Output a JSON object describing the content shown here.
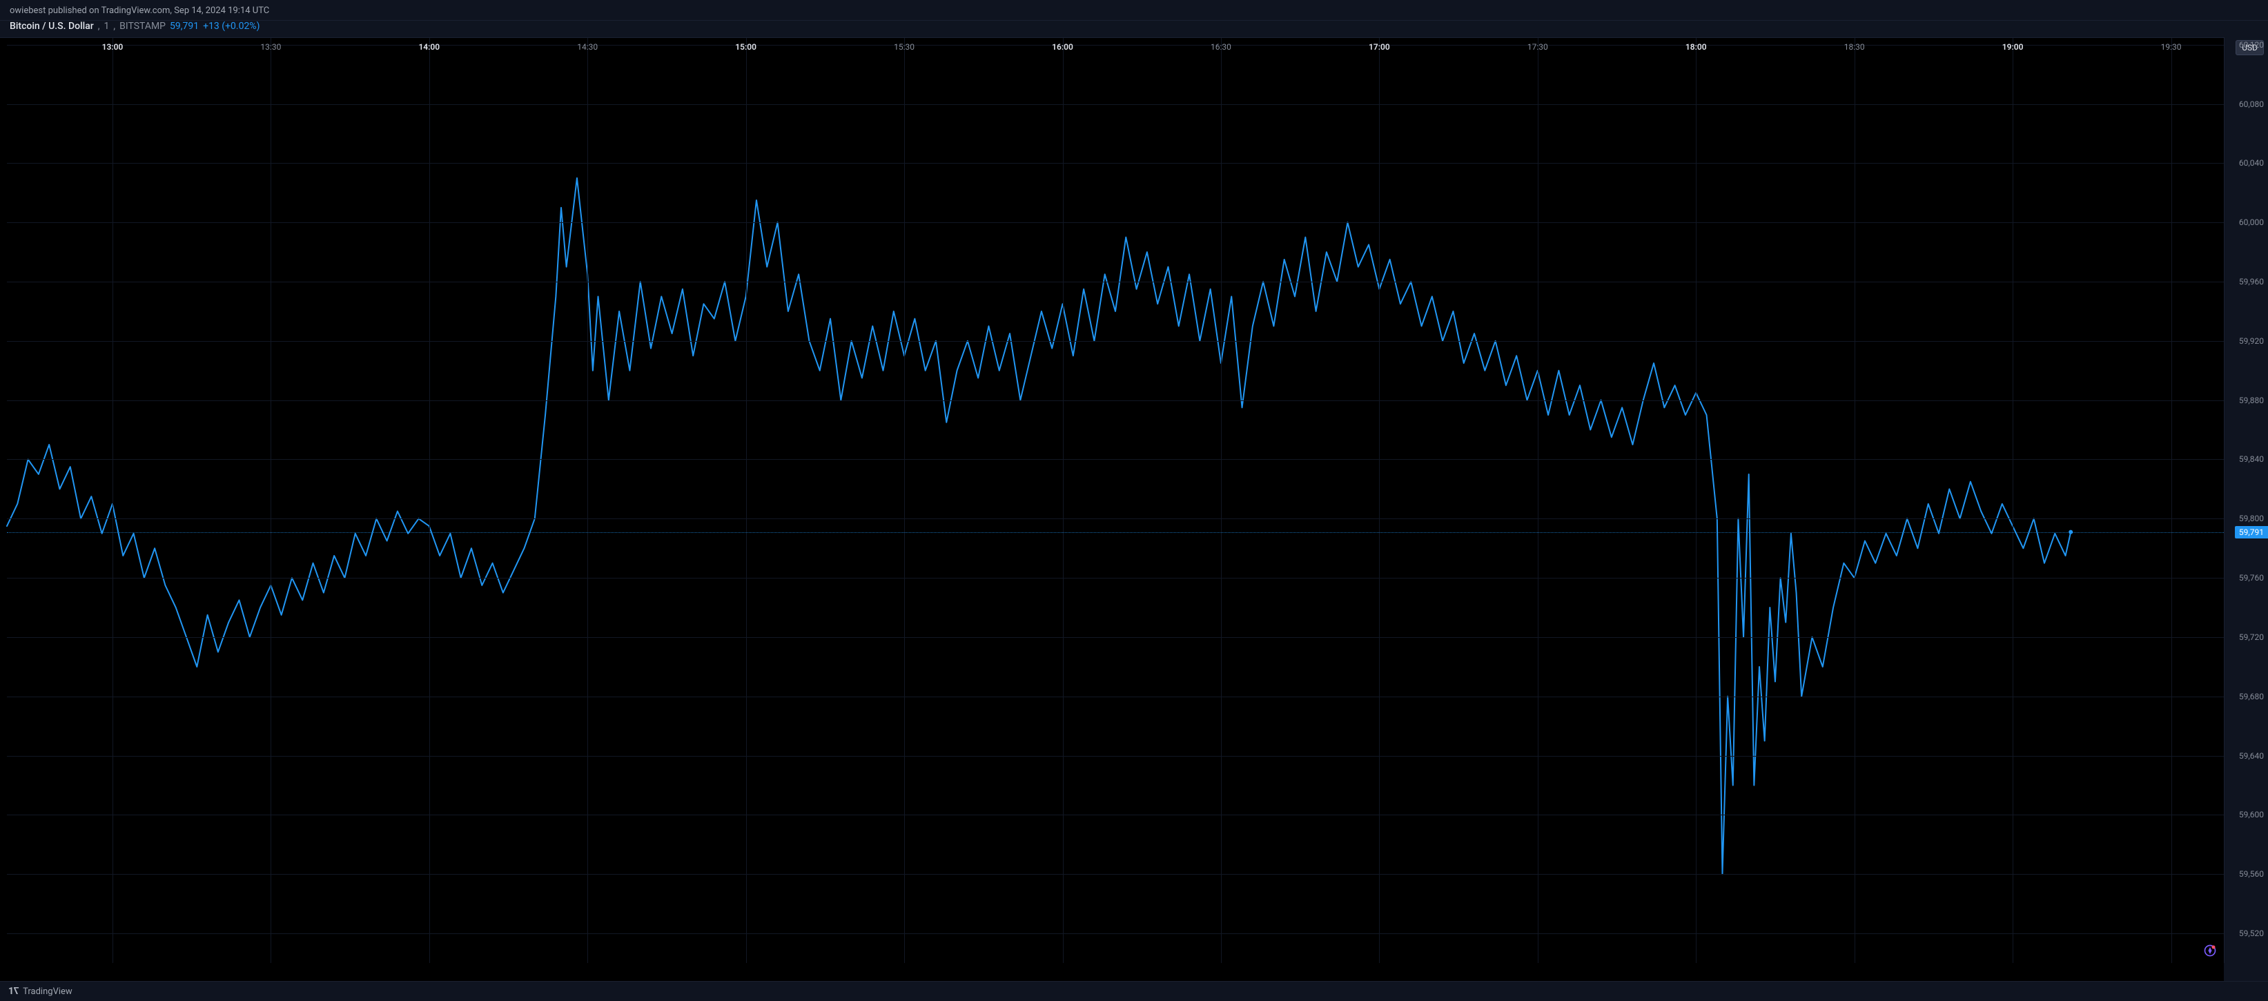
{
  "header": {
    "attribution": "owiebest published on TradingView.com, Sep 14, 2024 19:14 UTC"
  },
  "symbol_bar": {
    "symbol": "Bitcoin / U.S. Dollar",
    "interval": "1",
    "exchange": "BITSTAMP",
    "last_price": "59,791",
    "change": "+13 (+0.02%)"
  },
  "chart": {
    "type": "line",
    "line_color": "#2196f3",
    "line_width": 2,
    "background_color": "#000000",
    "grid_color": "#111724",
    "dotted_line_color": "#2196f3",
    "last_point_marker_color": "#2196f3",
    "ylim": [
      59500,
      60125
    ],
    "yticks": [
      {
        "v": 60120,
        "label": "60,120"
      },
      {
        "v": 60080,
        "label": "60,080"
      },
      {
        "v": 60040,
        "label": "60,040"
      },
      {
        "v": 60000,
        "label": "60,000"
      },
      {
        "v": 59960,
        "label": "59,960"
      },
      {
        "v": 59920,
        "label": "59,920"
      },
      {
        "v": 59880,
        "label": "59,880"
      },
      {
        "v": 59840,
        "label": "59,840"
      },
      {
        "v": 59800,
        "label": "59,800"
      },
      {
        "v": 59760,
        "label": "59,760"
      },
      {
        "v": 59720,
        "label": "59,720"
      },
      {
        "v": 59680,
        "label": "59,680"
      },
      {
        "v": 59640,
        "label": "59,640"
      },
      {
        "v": 59600,
        "label": "59,600"
      },
      {
        "v": 59560,
        "label": "59,560"
      },
      {
        "v": 59520,
        "label": "59,520"
      }
    ],
    "price_tag": {
      "v": 59791,
      "label": "59,791"
    },
    "xlim": [
      0,
      420
    ],
    "xticks": [
      {
        "x": 20,
        "label": "13:00",
        "bold": true
      },
      {
        "x": 50,
        "label": "13:30",
        "bold": false
      },
      {
        "x": 80,
        "label": "14:00",
        "bold": true
      },
      {
        "x": 110,
        "label": "14:30",
        "bold": false
      },
      {
        "x": 140,
        "label": "15:00",
        "bold": true
      },
      {
        "x": 170,
        "label": "15:30",
        "bold": false
      },
      {
        "x": 200,
        "label": "16:00",
        "bold": true
      },
      {
        "x": 230,
        "label": "16:30",
        "bold": false
      },
      {
        "x": 260,
        "label": "17:00",
        "bold": true
      },
      {
        "x": 290,
        "label": "17:30",
        "bold": false
      },
      {
        "x": 320,
        "label": "18:00",
        "bold": true
      },
      {
        "x": 350,
        "label": "18:30",
        "bold": false
      },
      {
        "x": 380,
        "label": "19:00",
        "bold": true
      },
      {
        "x": 410,
        "label": "19:30",
        "bold": false
      }
    ],
    "series": [
      [
        0,
        59795
      ],
      [
        2,
        59810
      ],
      [
        4,
        59840
      ],
      [
        6,
        59830
      ],
      [
        8,
        59850
      ],
      [
        10,
        59820
      ],
      [
        12,
        59835
      ],
      [
        14,
        59800
      ],
      [
        16,
        59815
      ],
      [
        18,
        59790
      ],
      [
        20,
        59810
      ],
      [
        22,
        59775
      ],
      [
        24,
        59790
      ],
      [
        26,
        59760
      ],
      [
        28,
        59780
      ],
      [
        30,
        59755
      ],
      [
        32,
        59740
      ],
      [
        34,
        59720
      ],
      [
        36,
        59700
      ],
      [
        38,
        59735
      ],
      [
        40,
        59710
      ],
      [
        42,
        59730
      ],
      [
        44,
        59745
      ],
      [
        46,
        59720
      ],
      [
        48,
        59740
      ],
      [
        50,
        59755
      ],
      [
        52,
        59735
      ],
      [
        54,
        59760
      ],
      [
        56,
        59745
      ],
      [
        58,
        59770
      ],
      [
        60,
        59750
      ],
      [
        62,
        59775
      ],
      [
        64,
        59760
      ],
      [
        66,
        59790
      ],
      [
        68,
        59775
      ],
      [
        70,
        59800
      ],
      [
        72,
        59785
      ],
      [
        74,
        59805
      ],
      [
        76,
        59790
      ],
      [
        78,
        59800
      ],
      [
        80,
        59795
      ],
      [
        82,
        59775
      ],
      [
        84,
        59790
      ],
      [
        86,
        59760
      ],
      [
        88,
        59780
      ],
      [
        90,
        59755
      ],
      [
        92,
        59770
      ],
      [
        94,
        59750
      ],
      [
        96,
        59765
      ],
      [
        98,
        59780
      ],
      [
        100,
        59800
      ],
      [
        102,
        59870
      ],
      [
        104,
        59950
      ],
      [
        105,
        60010
      ],
      [
        106,
        59970
      ],
      [
        108,
        60030
      ],
      [
        110,
        59965
      ],
      [
        111,
        59900
      ],
      [
        112,
        59950
      ],
      [
        114,
        59880
      ],
      [
        116,
        59940
      ],
      [
        118,
        59900
      ],
      [
        120,
        59960
      ],
      [
        122,
        59915
      ],
      [
        124,
        59950
      ],
      [
        126,
        59925
      ],
      [
        128,
        59955
      ],
      [
        130,
        59910
      ],
      [
        132,
        59945
      ],
      [
        134,
        59935
      ],
      [
        136,
        59960
      ],
      [
        138,
        59920
      ],
      [
        140,
        59950
      ],
      [
        142,
        60015
      ],
      [
        144,
        59970
      ],
      [
        146,
        60000
      ],
      [
        148,
        59940
      ],
      [
        150,
        59965
      ],
      [
        152,
        59920
      ],
      [
        154,
        59900
      ],
      [
        156,
        59935
      ],
      [
        158,
        59880
      ],
      [
        160,
        59920
      ],
      [
        162,
        59895
      ],
      [
        164,
        59930
      ],
      [
        166,
        59900
      ],
      [
        168,
        59940
      ],
      [
        170,
        59910
      ],
      [
        172,
        59935
      ],
      [
        174,
        59900
      ],
      [
        176,
        59920
      ],
      [
        178,
        59865
      ],
      [
        180,
        59900
      ],
      [
        182,
        59920
      ],
      [
        184,
        59895
      ],
      [
        186,
        59930
      ],
      [
        188,
        59900
      ],
      [
        190,
        59925
      ],
      [
        192,
        59880
      ],
      [
        194,
        59910
      ],
      [
        196,
        59940
      ],
      [
        198,
        59915
      ],
      [
        200,
        59945
      ],
      [
        202,
        59910
      ],
      [
        204,
        59955
      ],
      [
        206,
        59920
      ],
      [
        208,
        59965
      ],
      [
        210,
        59940
      ],
      [
        212,
        59990
      ],
      [
        214,
        59955
      ],
      [
        216,
        59980
      ],
      [
        218,
        59945
      ],
      [
        220,
        59970
      ],
      [
        222,
        59930
      ],
      [
        224,
        59965
      ],
      [
        226,
        59920
      ],
      [
        228,
        59955
      ],
      [
        230,
        59905
      ],
      [
        232,
        59950
      ],
      [
        234,
        59875
      ],
      [
        236,
        59930
      ],
      [
        238,
        59960
      ],
      [
        240,
        59930
      ],
      [
        242,
        59975
      ],
      [
        244,
        59950
      ],
      [
        246,
        59990
      ],
      [
        248,
        59940
      ],
      [
        250,
        59980
      ],
      [
        252,
        59960
      ],
      [
        254,
        60000
      ],
      [
        256,
        59970
      ],
      [
        258,
        59985
      ],
      [
        260,
        59955
      ],
      [
        262,
        59975
      ],
      [
        264,
        59945
      ],
      [
        266,
        59960
      ],
      [
        268,
        59930
      ],
      [
        270,
        59950
      ],
      [
        272,
        59920
      ],
      [
        274,
        59940
      ],
      [
        276,
        59905
      ],
      [
        278,
        59925
      ],
      [
        280,
        59900
      ],
      [
        282,
        59920
      ],
      [
        284,
        59890
      ],
      [
        286,
        59910
      ],
      [
        288,
        59880
      ],
      [
        290,
        59900
      ],
      [
        292,
        59870
      ],
      [
        294,
        59900
      ],
      [
        296,
        59870
      ],
      [
        298,
        59890
      ],
      [
        300,
        59860
      ],
      [
        302,
        59880
      ],
      [
        304,
        59855
      ],
      [
        306,
        59875
      ],
      [
        308,
        59850
      ],
      [
        310,
        59880
      ],
      [
        312,
        59905
      ],
      [
        314,
        59875
      ],
      [
        316,
        59890
      ],
      [
        318,
        59870
      ],
      [
        320,
        59885
      ],
      [
        322,
        59870
      ],
      [
        324,
        59800
      ],
      [
        325,
        59560
      ],
      [
        326,
        59680
      ],
      [
        327,
        59620
      ],
      [
        328,
        59800
      ],
      [
        329,
        59720
      ],
      [
        330,
        59830
      ],
      [
        331,
        59620
      ],
      [
        332,
        59700
      ],
      [
        333,
        59650
      ],
      [
        334,
        59740
      ],
      [
        335,
        59690
      ],
      [
        336,
        59760
      ],
      [
        337,
        59730
      ],
      [
        338,
        59790
      ],
      [
        339,
        59750
      ],
      [
        340,
        59680
      ],
      [
        342,
        59720
      ],
      [
        344,
        59700
      ],
      [
        346,
        59740
      ],
      [
        348,
        59770
      ],
      [
        350,
        59760
      ],
      [
        352,
        59785
      ],
      [
        354,
        59770
      ],
      [
        356,
        59790
      ],
      [
        358,
        59775
      ],
      [
        360,
        59800
      ],
      [
        362,
        59780
      ],
      [
        364,
        59810
      ],
      [
        366,
        59790
      ],
      [
        368,
        59820
      ],
      [
        370,
        59800
      ],
      [
        372,
        59825
      ],
      [
        374,
        59805
      ],
      [
        376,
        59790
      ],
      [
        378,
        59810
      ],
      [
        380,
        59795
      ],
      [
        382,
        59780
      ],
      [
        384,
        59800
      ],
      [
        386,
        59770
      ],
      [
        388,
        59790
      ],
      [
        390,
        59775
      ],
      [
        391,
        59791
      ]
    ]
  },
  "yaxis": {
    "currency_button": "USD"
  },
  "footer": {
    "brand": "TradingView"
  },
  "colors": {
    "page_bg": "#0f1420",
    "axis_text": "#868c98",
    "axis_text_bold": "#e0e3ea",
    "price_accent": "#2196f3",
    "border": "#1a2030"
  },
  "snap_icon_colors": {
    "ring": "#7b5cff",
    "dot": "#ff4d6a"
  }
}
